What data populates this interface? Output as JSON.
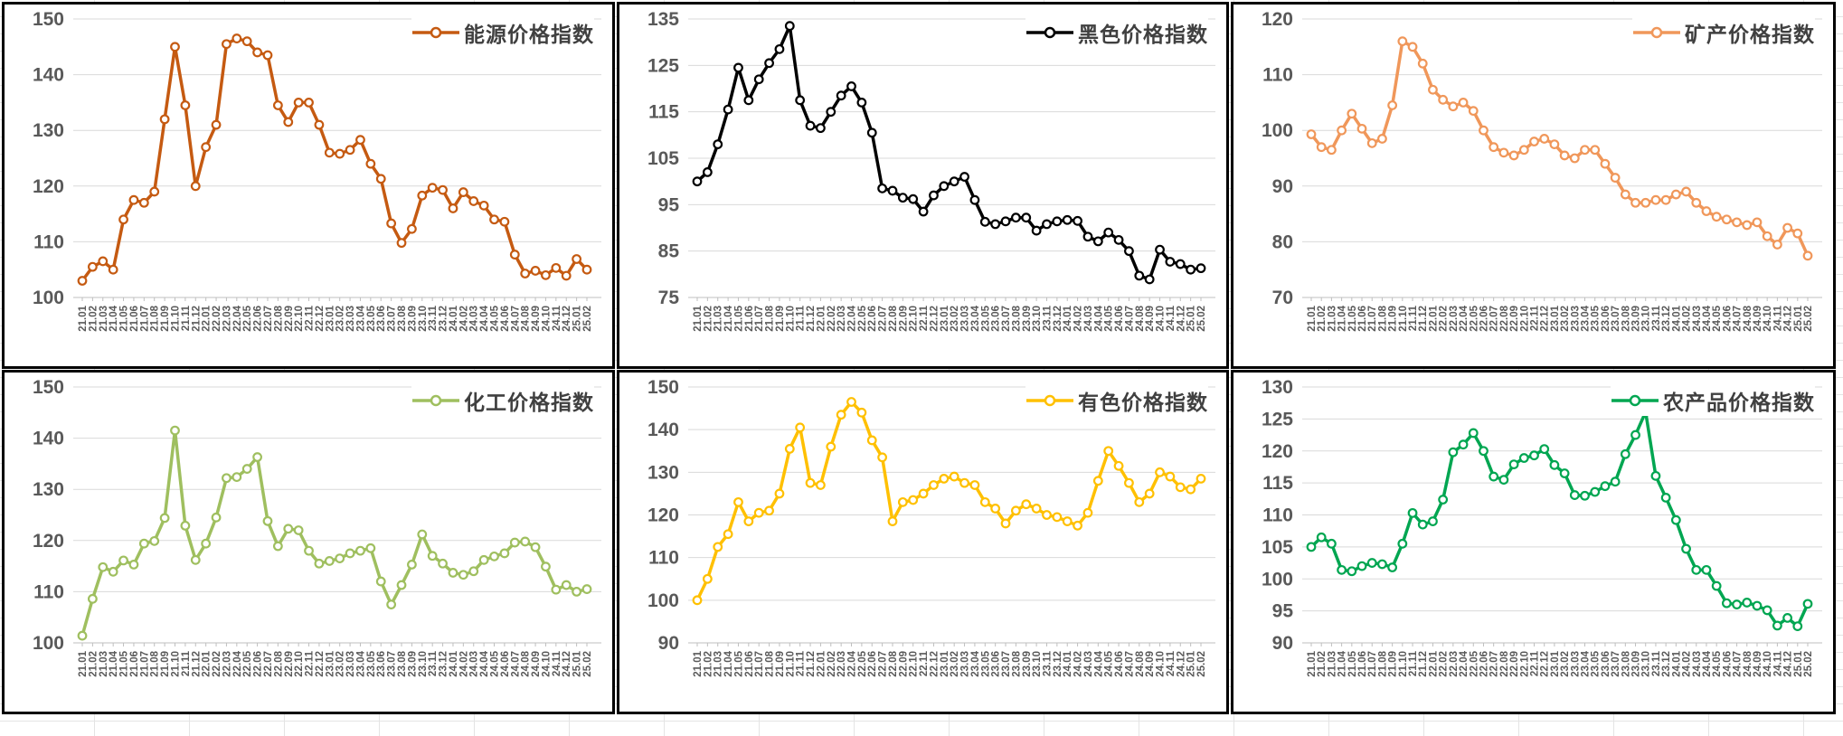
{
  "style": {
    "panel_border_color": "#000000",
    "gridline_color": "#d9d9d9",
    "axis_line_color": "#bfbfbf",
    "tick_label_color": "#595959",
    "legend_text_color": "#404040",
    "marker_fill": "#ffffff"
  },
  "x_categories": [
    "21.01",
    "21.02",
    "21.03",
    "21.04",
    "21.05",
    "21.06",
    "21.07",
    "21.08",
    "21.09",
    "21.10",
    "21.11",
    "21.12",
    "22.01",
    "22.02",
    "22.03",
    "22.04",
    "22.05",
    "22.06",
    "22.07",
    "22.08",
    "22.09",
    "22.10",
    "22.11",
    "22.12",
    "23.01",
    "23.02",
    "23.03",
    "23.04",
    "23.05",
    "23.06",
    "23.07",
    "23.08",
    "23.09",
    "23.10",
    "23.11",
    "23.12",
    "24.01",
    "24.02",
    "24.03",
    "24.04",
    "24.05",
    "24.06",
    "24.07",
    "24.08",
    "24.09",
    "24.10",
    "24.11",
    "24.12",
    "25.01",
    "25.02"
  ],
  "chart_data": [
    {
      "type": "line",
      "title": "能源价格指数",
      "color": "#C55A11",
      "ylim": [
        100,
        150
      ],
      "ytick_step": 10,
      "grid": true,
      "legend_position": "top-right",
      "values": [
        103,
        105.5,
        106.5,
        105,
        114,
        117.5,
        117,
        119,
        132,
        145,
        134.5,
        120,
        127,
        131,
        145.5,
        146.5,
        146,
        144,
        143.5,
        134.5,
        131.5,
        135,
        135,
        131,
        126,
        125.8,
        126.5,
        128.3,
        124,
        121.3,
        113.3,
        109.8,
        112.3,
        118.3,
        119.7,
        119.3,
        116,
        118.9,
        117.3,
        116.5,
        114,
        113.6,
        107.7,
        104.3,
        104.8,
        104,
        105.3,
        103.9,
        106.9,
        105
      ]
    },
    {
      "type": "line",
      "title": "黑色价格指数",
      "color": "#000000",
      "ylim": [
        75,
        135
      ],
      "ytick_step": 10,
      "grid": true,
      "legend_position": "top-right",
      "values": [
        100,
        102,
        108,
        115.5,
        124.5,
        117.5,
        122,
        125.5,
        128.5,
        133.5,
        117.5,
        112,
        111.5,
        115,
        118.5,
        120.5,
        117,
        110.5,
        98.5,
        98,
        96.5,
        96.2,
        93.5,
        97,
        99,
        100,
        101,
        96,
        91.3,
        90.8,
        91.4,
        92.2,
        92.2,
        89.4,
        90.8,
        91.4,
        91.7,
        91.5,
        88.1,
        87.1,
        89,
        87.4,
        85,
        79.7,
        78.9,
        85.3,
        82.7,
        82.2,
        81,
        81.3
      ]
    },
    {
      "type": "line",
      "title": "矿产价格指数",
      "color": "#F0975A",
      "ylim": [
        70,
        120
      ],
      "ytick_step": 10,
      "grid": true,
      "legend_position": "top-right",
      "values": [
        99.3,
        97,
        96.5,
        100,
        103,
        100.3,
        97.7,
        98.5,
        104.5,
        116,
        115,
        112,
        107.3,
        105.5,
        104.3,
        105,
        103.5,
        100,
        97,
        96,
        95.5,
        96.5,
        98,
        98.5,
        97.5,
        95.5,
        95,
        96.5,
        96.5,
        94,
        91.5,
        88.5,
        87,
        87,
        87.5,
        87.5,
        88.5,
        89,
        87,
        85.5,
        84.5,
        84,
        83.5,
        83,
        83.5,
        81,
        79.5,
        82.5,
        81.5,
        77.5
      ]
    },
    {
      "type": "line",
      "title": "化工价格指数",
      "color": "#9FBF5F",
      "ylim": [
        100,
        150
      ],
      "ytick_step": 10,
      "grid": true,
      "legend_position": "top-right",
      "values": [
        101.4,
        108.6,
        114.8,
        113.9,
        116.1,
        115.3,
        119.4,
        119.9,
        124.4,
        141.5,
        122.9,
        116.2,
        119.4,
        124.5,
        132.2,
        132.4,
        134,
        136.3,
        123.8,
        118.9,
        122.3,
        122,
        118,
        115.5,
        116,
        116.5,
        117.5,
        118,
        118.5,
        112,
        107.5,
        111.3,
        115.3,
        121.2,
        117,
        115.5,
        113.7,
        113.3,
        114,
        116.2,
        116.9,
        117.5,
        119.6,
        119.8,
        118.7,
        114.9,
        110.4,
        111.3,
        110,
        110.5
      ]
    },
    {
      "type": "line",
      "title": "有色价格指数",
      "color": "#FFC000",
      "ylim": [
        90,
        150
      ],
      "ytick_step": 10,
      "grid": true,
      "legend_position": "top-right",
      "values": [
        100,
        105,
        112.5,
        115.5,
        123,
        118.5,
        120.5,
        121,
        125,
        135.5,
        140.5,
        127.5,
        127,
        136,
        143.5,
        146.5,
        144,
        137.5,
        133.5,
        118.5,
        123,
        123.5,
        125,
        127,
        128.5,
        129,
        127.5,
        127,
        123,
        121.5,
        118,
        121,
        122.5,
        121.5,
        120,
        119.5,
        118.5,
        117.5,
        120.5,
        128,
        135,
        131.5,
        127.5,
        123,
        125,
        130,
        129,
        126.5,
        126,
        128.5
      ]
    },
    {
      "type": "line",
      "title": "农产品价格指数",
      "color": "#00A651",
      "ylim": [
        90,
        130
      ],
      "ytick_step": 5,
      "grid": true,
      "legend_position": "top-right",
      "values": [
        105,
        106.5,
        105.5,
        101.4,
        101.2,
        102,
        102.5,
        102.3,
        101.8,
        105.5,
        110.3,
        108.5,
        109,
        112.4,
        119.8,
        121,
        122.8,
        120,
        116,
        115.5,
        117.9,
        118.9,
        119.3,
        120.3,
        117.8,
        116.5,
        113.1,
        113,
        113.6,
        114.5,
        115.2,
        119.5,
        122.5,
        126.1,
        116.1,
        112.7,
        109.2,
        104.7,
        101.4,
        101.4,
        98.9,
        96.2,
        96,
        96.3,
        95.8,
        95.1,
        92.7,
        93.9,
        92.6,
        96.1
      ]
    }
  ]
}
